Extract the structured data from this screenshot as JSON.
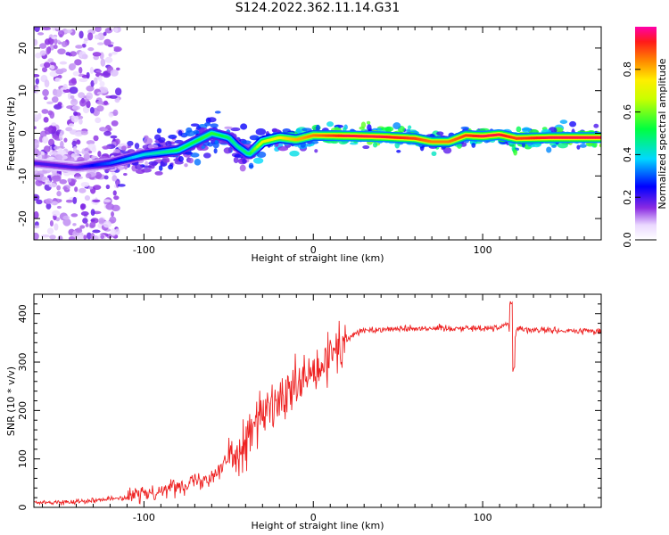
{
  "title": "S124.2022.362.11.14.G31",
  "colors": {
    "snr_line": "#ee2222",
    "background": "#ffffff",
    "axis": "#000000"
  },
  "chart_data": [
    {
      "type": "heatmap",
      "title": "S124.2022.362.11.14.G31",
      "xlabel": "Height of straight line (km)",
      "ylabel": "Frequency (Hz)",
      "xlim": [
        -165,
        170
      ],
      "ylim": [
        -25,
        25
      ],
      "x_ticks": [
        -100,
        0,
        100
      ],
      "y_ticks": [
        -20,
        -10,
        0,
        10,
        20
      ],
      "grid": false,
      "colorbar": {
        "label": "Normalized spectral amplitude",
        "range": [
          0,
          1
        ],
        "ticks": [
          0.0,
          0.2,
          0.4,
          0.6,
          0.8
        ],
        "colormap": "rainbow-white-to-red"
      },
      "ridge": {
        "x": [
          -165,
          -140,
          -120,
          -100,
          -80,
          -60,
          -50,
          -45,
          -38,
          -30,
          -20,
          -10,
          0,
          20,
          40,
          60,
          70,
          80,
          90,
          100,
          110,
          120,
          140,
          170
        ],
        "y": [
          -7,
          -8,
          -7,
          -5,
          -4,
          0,
          -1,
          -3,
          -5,
          -2,
          -1,
          -1.5,
          -0.5,
          -0.6,
          -0.8,
          -1.2,
          -2,
          -2,
          -0.5,
          -0.7,
          -0.3,
          -1.2,
          -1.0,
          -1.0
        ],
        "amplitude": [
          0.2,
          0.2,
          0.3,
          0.4,
          0.5,
          0.55,
          0.5,
          0.45,
          0.5,
          0.7,
          0.75,
          0.8,
          0.85,
          0.95,
          0.95,
          0.9,
          0.85,
          0.85,
          0.9,
          0.95,
          0.95,
          0.9,
          0.95,
          0.95
        ]
      }
    },
    {
      "type": "line",
      "xlabel": "Height of straight line (km)",
      "ylabel": "SNR (10 * v/v)",
      "xlim": [
        -165,
        170
      ],
      "ylim": [
        0,
        440
      ],
      "x_ticks": [
        -100,
        0,
        100
      ],
      "y_ticks": [
        0,
        100,
        200,
        300,
        400
      ],
      "grid": false,
      "series": [
        {
          "x": [
            -165,
            -150,
            -130,
            -110,
            -100,
            -90,
            -80,
            -70,
            -60,
            -55,
            -50,
            -45,
            -40,
            -35,
            -30,
            -25,
            -20,
            -15,
            -10,
            -5,
            0,
            5,
            10,
            15,
            20,
            25,
            30,
            40,
            60,
            80,
            100,
            110,
            115,
            118,
            120,
            125,
            130,
            150,
            170
          ],
          "values": [
            10,
            10,
            15,
            20,
            28,
            35,
            45,
            55,
            65,
            80,
            100,
            120,
            140,
            170,
            190,
            200,
            215,
            230,
            245,
            260,
            270,
            285,
            310,
            330,
            345,
            360,
            365,
            368,
            370,
            370,
            370,
            372,
            380,
            310,
            370,
            368,
            366,
            364,
            364
          ]
        }
      ],
      "notable_spikes": [
        {
          "x": -30,
          "y": 300
        },
        {
          "x": -25,
          "y": 330
        },
        {
          "x": 0,
          "y": 390
        },
        {
          "x": 117,
          "y": 435
        },
        {
          "x": 118,
          "y": 275
        }
      ]
    }
  ]
}
